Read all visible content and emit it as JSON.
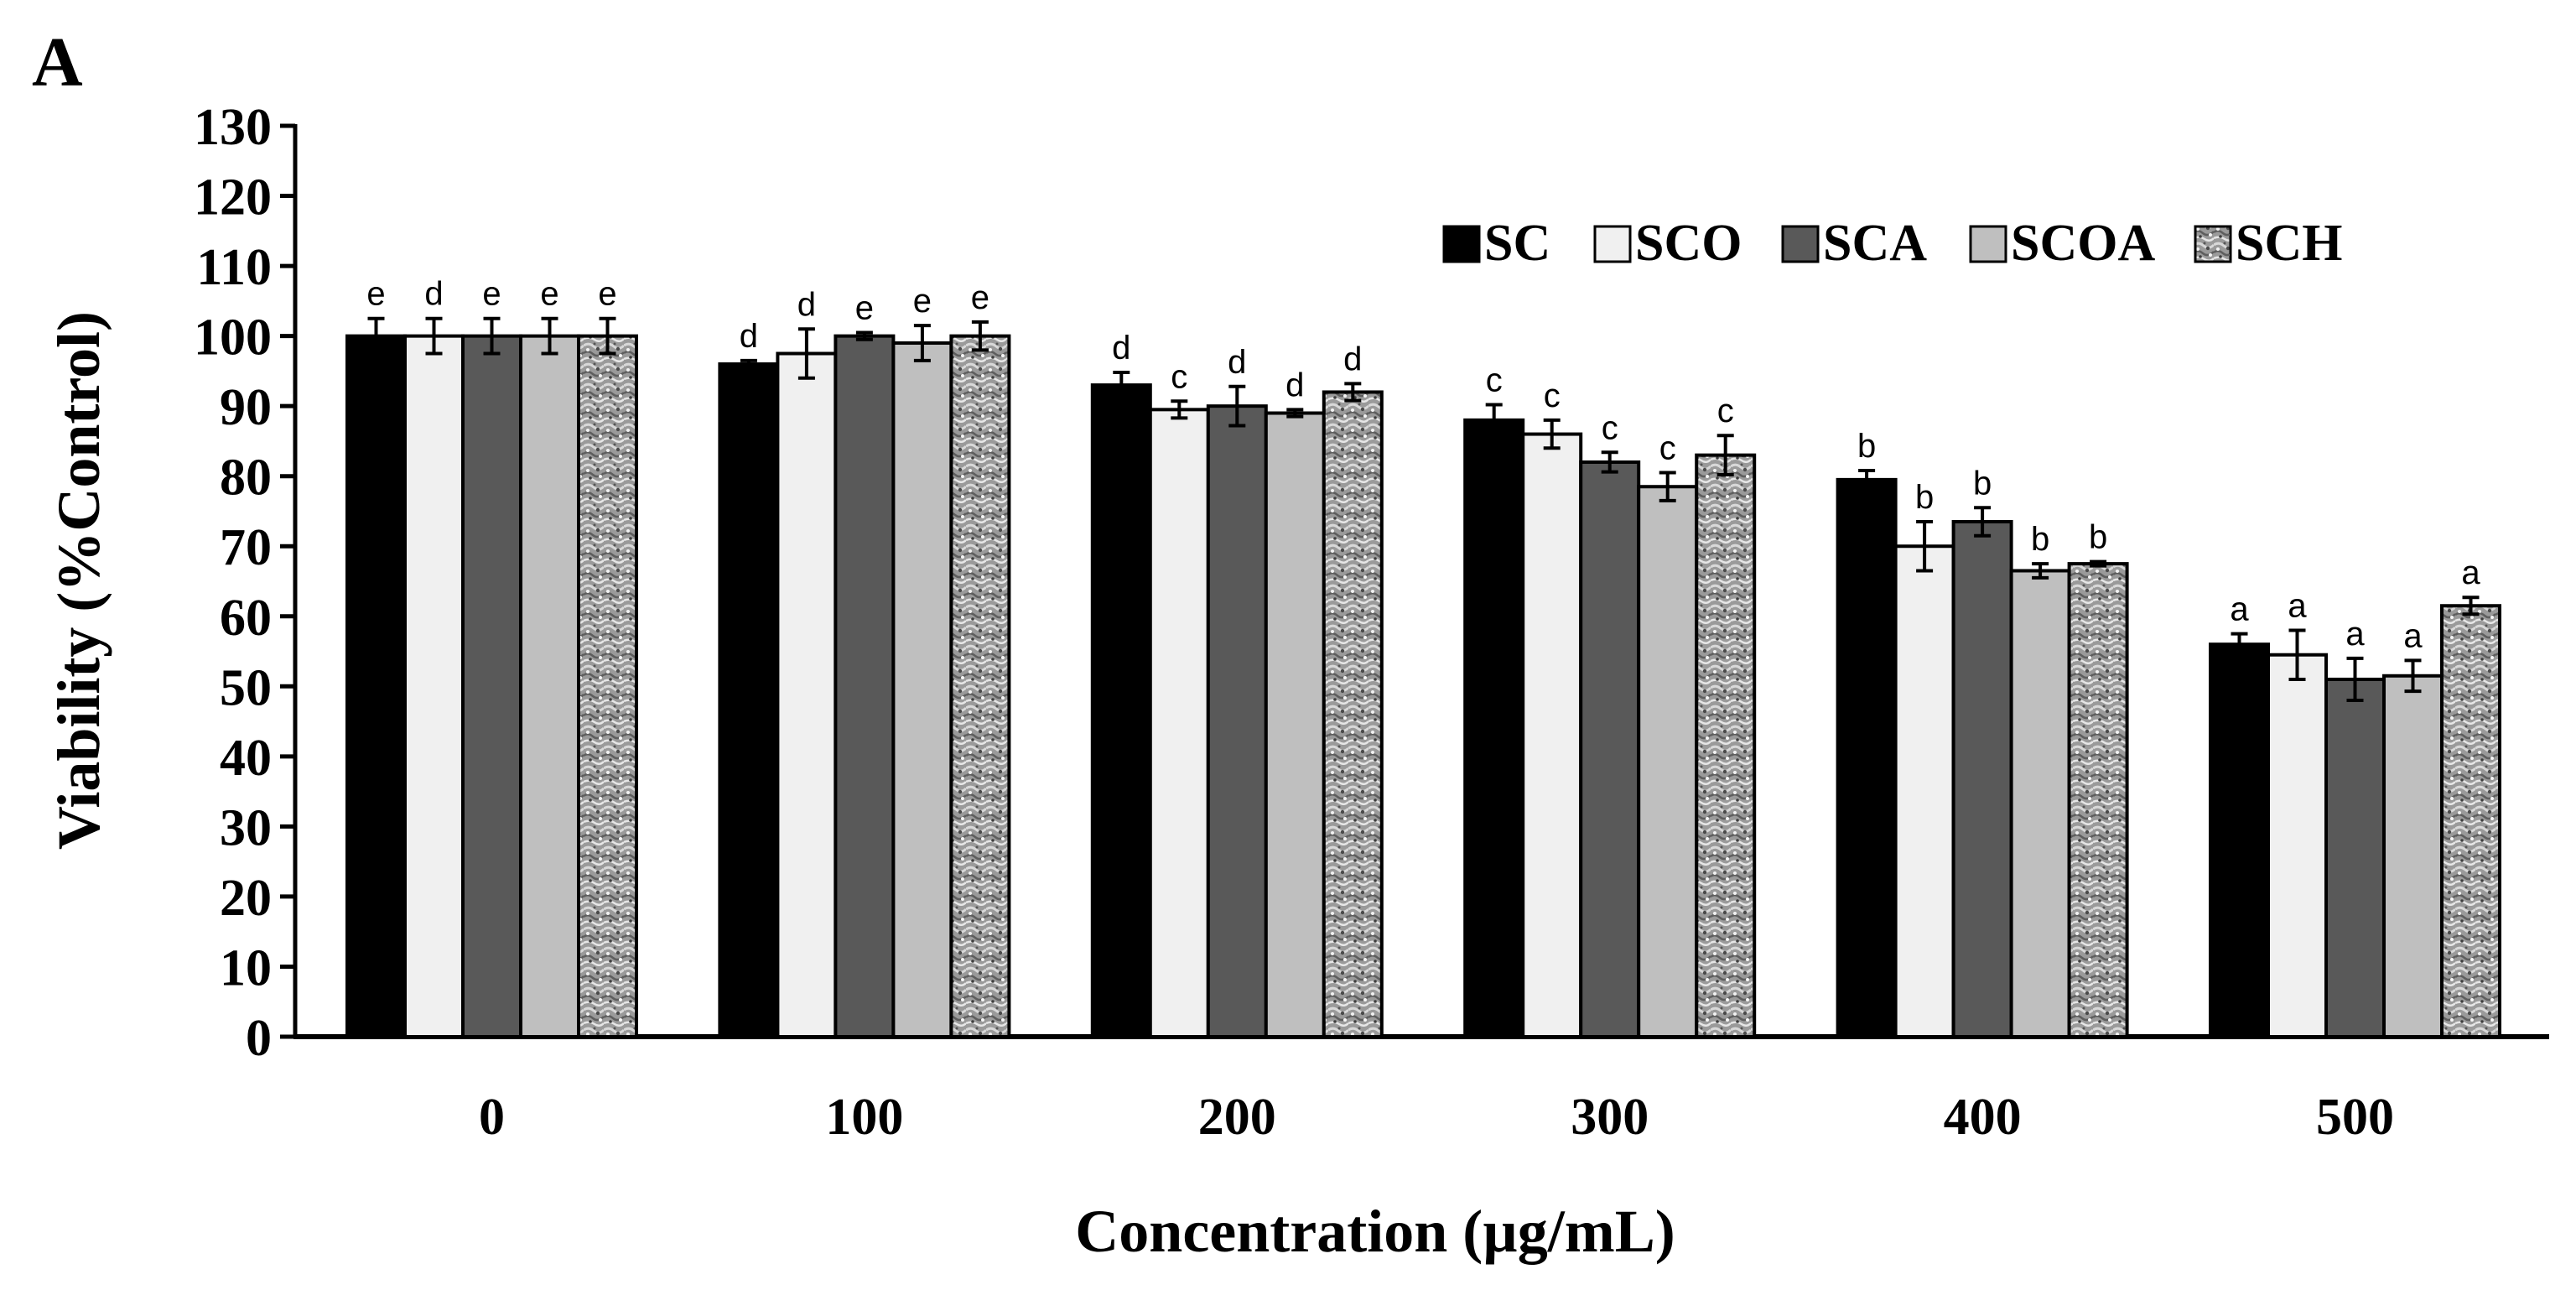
{
  "chart_data": {
    "type": "bar",
    "panel_label": "A",
    "title": "",
    "xlabel": "Concentration (µg/mL)",
    "ylabel": "Viability (%Control)",
    "ylim": [
      0,
      130
    ],
    "ytick_step": 10,
    "yticks": [
      "0",
      "10",
      "20",
      "30",
      "40",
      "50",
      "60",
      "70",
      "80",
      "90",
      "100",
      "110",
      "120",
      "130"
    ],
    "categories": [
      "0",
      "100",
      "200",
      "300",
      "400",
      "500"
    ],
    "legend_position": "top-right",
    "series": [
      {
        "name": "SC",
        "fill": "#000000",
        "values": [
          100,
          96,
          93,
          88,
          79.5,
          56
        ],
        "errors": [
          2.5,
          0.5,
          1.8,
          2.2,
          1.3,
          1.5
        ],
        "letters": [
          "e",
          "d",
          "d",
          "c",
          "b",
          "a"
        ]
      },
      {
        "name": "SCO",
        "fill": "#f0f0f0",
        "values": [
          100,
          97.5,
          89.5,
          86,
          70,
          54.5
        ],
        "errors": [
          2.5,
          3.5,
          1.2,
          2.0,
          3.5,
          3.5
        ],
        "letters": [
          "d",
          "d",
          "c",
          "c",
          "b",
          "a"
        ]
      },
      {
        "name": "SCA",
        "fill": "#595959",
        "values": [
          100,
          100,
          90,
          82,
          73.5,
          51
        ],
        "errors": [
          2.5,
          0.5,
          2.8,
          1.4,
          2.0,
          3.0
        ],
        "letters": [
          "e",
          "e",
          "d",
          "c",
          "b",
          "a"
        ]
      },
      {
        "name": "SCOA",
        "fill": "#bfbfbf",
        "values": [
          100,
          99,
          89,
          78.5,
          66.5,
          51.5
        ],
        "errors": [
          2.5,
          2.5,
          0.5,
          2.0,
          1.0,
          2.2
        ],
        "letters": [
          "e",
          "e",
          "d",
          "c",
          "b",
          "a"
        ]
      },
      {
        "name": "SCH",
        "fill": "pattern",
        "values": [
          100,
          100,
          92,
          83,
          67.5,
          61.5
        ],
        "errors": [
          2.5,
          2.0,
          1.2,
          2.8,
          0.3,
          1.2
        ],
        "letters": [
          "e",
          "e",
          "d",
          "c",
          "b",
          "a"
        ]
      }
    ]
  }
}
